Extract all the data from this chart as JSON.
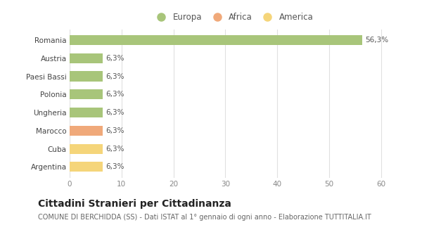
{
  "categories": [
    "Argentina",
    "Cuba",
    "Marocco",
    "Ungheria",
    "Polonia",
    "Paesi Bassi",
    "Austria",
    "Romania"
  ],
  "values": [
    6.3,
    6.3,
    6.3,
    6.3,
    6.3,
    6.3,
    6.3,
    56.3
  ],
  "colors": [
    "#f5d57a",
    "#f5d57a",
    "#f0a97a",
    "#a8c57a",
    "#a8c57a",
    "#a8c57a",
    "#a8c57a",
    "#a8c57a"
  ],
  "labels": [
    "6,3%",
    "6,3%",
    "6,3%",
    "6,3%",
    "6,3%",
    "6,3%",
    "6,3%",
    "56,3%"
  ],
  "xlim": [
    0,
    63
  ],
  "xticks": [
    0,
    10,
    20,
    30,
    40,
    50,
    60
  ],
  "legend_items": [
    {
      "label": "Europa",
      "color": "#a8c57a"
    },
    {
      "label": "Africa",
      "color": "#f0a97a"
    },
    {
      "label": "America",
      "color": "#f5d57a"
    }
  ],
  "title": "Cittadini Stranieri per Cittadinanza",
  "subtitle": "COMUNE DI BERCHIDDA (SS) - Dati ISTAT al 1° gennaio di ogni anno - Elaborazione TUTTITALIA.IT",
  "background_color": "#ffffff",
  "grid_color": "#e0e0e0",
  "bar_height": 0.55,
  "label_fontsize": 7.5,
  "title_fontsize": 10,
  "subtitle_fontsize": 7,
  "tick_fontsize": 7.5,
  "legend_fontsize": 8.5
}
